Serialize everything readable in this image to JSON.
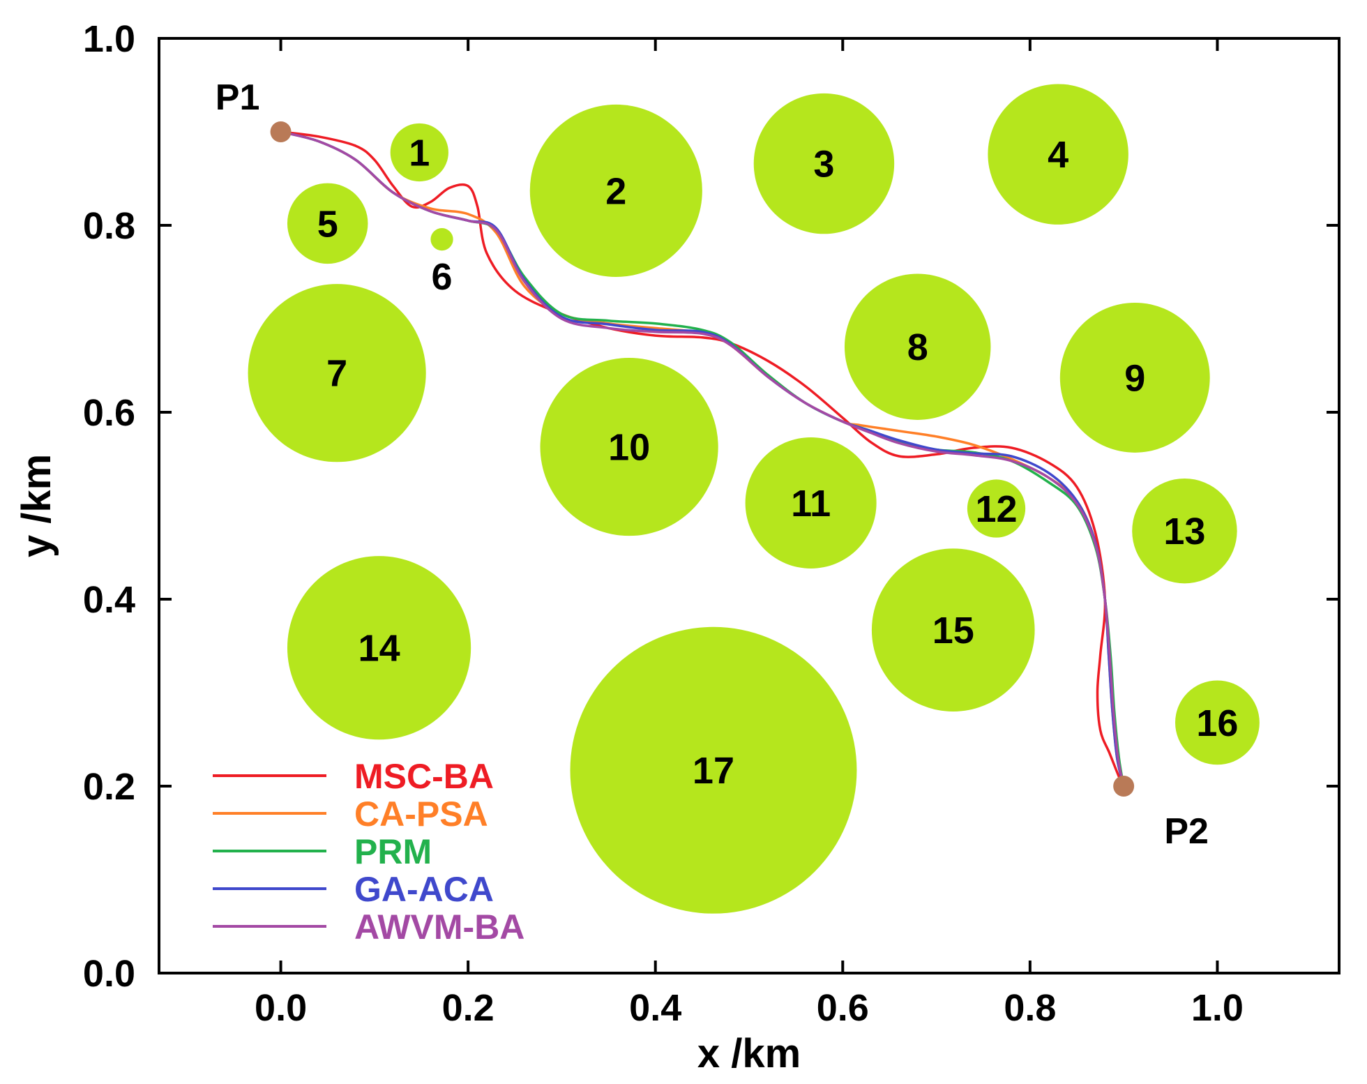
{
  "chart_data": {
    "type": "line",
    "title": "",
    "xlabel": "x /km",
    "ylabel": "y /km",
    "xlim": [
      -0.13,
      1.13
    ],
    "ylim": [
      0.0,
      1.0
    ],
    "xticks": [
      0.0,
      0.2,
      0.4,
      0.6,
      0.8,
      1.0
    ],
    "xtick_labels": [
      "0.0",
      "0.2",
      "0.4",
      "0.6",
      "0.8",
      "1.0"
    ],
    "yticks": [
      0.0,
      0.2,
      0.4,
      0.6,
      0.8,
      1.0
    ],
    "ytick_labels": [
      "0.0",
      "0.2",
      "0.4",
      "0.6",
      "0.8",
      "1.0"
    ],
    "obstacle_color": "#b5e61d",
    "obstacles": [
      {
        "label": "1",
        "cx": 0.148,
        "cy": 0.878,
        "r": 0.031
      },
      {
        "label": "2",
        "cx": 0.358,
        "cy": 0.837,
        "r": 0.092
      },
      {
        "label": "3",
        "cx": 0.58,
        "cy": 0.866,
        "r": 0.075
      },
      {
        "label": "4",
        "cx": 0.83,
        "cy": 0.876,
        "r": 0.075
      },
      {
        "label": "5",
        "cx": 0.05,
        "cy": 0.802,
        "r": 0.043
      },
      {
        "label": "6",
        "cx": 0.172,
        "cy": 0.785,
        "r": 0.012
      },
      {
        "label": "7",
        "cx": 0.06,
        "cy": 0.642,
        "r": 0.095
      },
      {
        "label": "8",
        "cx": 0.68,
        "cy": 0.67,
        "r": 0.078
      },
      {
        "label": "9",
        "cx": 0.912,
        "cy": 0.637,
        "r": 0.08
      },
      {
        "label": "10",
        "cx": 0.372,
        "cy": 0.563,
        "r": 0.095
      },
      {
        "label": "11",
        "cx": 0.566,
        "cy": 0.503,
        "r": 0.07
      },
      {
        "label": "12",
        "cx": 0.764,
        "cy": 0.497,
        "r": 0.031
      },
      {
        "label": "13",
        "cx": 0.965,
        "cy": 0.473,
        "r": 0.056
      },
      {
        "label": "14",
        "cx": 0.105,
        "cy": 0.348,
        "r": 0.098
      },
      {
        "label": "15",
        "cx": 0.718,
        "cy": 0.367,
        "r": 0.087
      },
      {
        "label": "16",
        "cx": 1.0,
        "cy": 0.268,
        "r": 0.045
      },
      {
        "label": "17",
        "cx": 0.462,
        "cy": 0.217,
        "r": 0.153
      }
    ],
    "points": [
      {
        "label": "P1",
        "x": 0.0,
        "y": 0.9
      },
      {
        "label": "P2",
        "x": 0.9,
        "y": 0.2
      }
    ],
    "point_color": "#b97a57",
    "legend_position": "bottom-left",
    "series": [
      {
        "name": "MSC-BA",
        "color": "#ee1c24",
        "x": [
          0.0,
          0.04,
          0.08,
          0.1,
          0.12,
          0.14,
          0.16,
          0.18,
          0.2,
          0.21,
          0.22,
          0.25,
          0.3,
          0.35,
          0.4,
          0.45,
          0.48,
          0.52,
          0.56,
          0.6,
          0.63,
          0.66,
          0.7,
          0.74,
          0.78,
          0.82,
          0.85,
          0.87,
          0.88,
          0.875,
          0.872,
          0.875,
          0.885,
          0.895,
          0.9
        ],
        "y": [
          0.9,
          0.895,
          0.885,
          0.87,
          0.842,
          0.82,
          0.825,
          0.84,
          0.842,
          0.82,
          0.77,
          0.73,
          0.705,
          0.69,
          0.682,
          0.68,
          0.674,
          0.655,
          0.628,
          0.594,
          0.568,
          0.553,
          0.555,
          0.562,
          0.562,
          0.546,
          0.52,
          0.47,
          0.4,
          0.34,
          0.3,
          0.26,
          0.235,
          0.21,
          0.2
        ]
      },
      {
        "name": "CA-PSA",
        "color": "#ff7f27",
        "x": [
          0.0,
          0.04,
          0.08,
          0.12,
          0.16,
          0.2,
          0.23,
          0.26,
          0.3,
          0.35,
          0.4,
          0.45,
          0.48,
          0.52,
          0.56,
          0.6,
          0.62,
          0.66,
          0.7,
          0.74,
          0.78,
          0.82,
          0.85,
          0.87,
          0.88,
          0.884,
          0.888,
          0.893,
          0.9
        ],
        "y": [
          0.9,
          0.89,
          0.87,
          0.835,
          0.818,
          0.812,
          0.792,
          0.735,
          0.705,
          0.695,
          0.69,
          0.685,
          0.672,
          0.638,
          0.61,
          0.59,
          0.586,
          0.58,
          0.574,
          0.565,
          0.55,
          0.53,
          0.505,
          0.46,
          0.4,
          0.34,
          0.28,
          0.23,
          0.2
        ]
      },
      {
        "name": "PRM",
        "color": "#22b14c",
        "x": [
          0.0,
          0.04,
          0.08,
          0.12,
          0.16,
          0.2,
          0.23,
          0.26,
          0.3,
          0.35,
          0.4,
          0.45,
          0.48,
          0.52,
          0.56,
          0.6,
          0.63,
          0.66,
          0.7,
          0.74,
          0.78,
          0.82,
          0.85,
          0.87,
          0.88,
          0.886,
          0.89,
          0.895,
          0.9
        ],
        "y": [
          0.9,
          0.89,
          0.87,
          0.835,
          0.815,
          0.805,
          0.795,
          0.745,
          0.705,
          0.698,
          0.695,
          0.688,
          0.675,
          0.64,
          0.61,
          0.59,
          0.58,
          0.568,
          0.56,
          0.557,
          0.548,
          0.525,
          0.5,
          0.455,
          0.4,
          0.34,
          0.28,
          0.23,
          0.2
        ]
      },
      {
        "name": "GA-ACA",
        "color": "#3f48cc",
        "x": [
          0.0,
          0.04,
          0.08,
          0.12,
          0.16,
          0.2,
          0.23,
          0.26,
          0.3,
          0.35,
          0.4,
          0.45,
          0.48,
          0.52,
          0.56,
          0.6,
          0.63,
          0.66,
          0.7,
          0.74,
          0.78,
          0.82,
          0.85,
          0.87,
          0.88,
          0.884,
          0.888,
          0.893,
          0.9
        ],
        "y": [
          0.9,
          0.89,
          0.87,
          0.835,
          0.815,
          0.805,
          0.797,
          0.742,
          0.702,
          0.694,
          0.688,
          0.686,
          0.673,
          0.638,
          0.61,
          0.59,
          0.58,
          0.57,
          0.56,
          0.556,
          0.553,
          0.535,
          0.505,
          0.46,
          0.4,
          0.34,
          0.28,
          0.23,
          0.2
        ]
      },
      {
        "name": "AWVM-BA",
        "color": "#a349a4",
        "x": [
          0.0,
          0.04,
          0.08,
          0.12,
          0.16,
          0.2,
          0.23,
          0.26,
          0.3,
          0.35,
          0.4,
          0.45,
          0.48,
          0.52,
          0.56,
          0.6,
          0.63,
          0.66,
          0.7,
          0.74,
          0.78,
          0.82,
          0.85,
          0.87,
          0.88,
          0.885,
          0.889,
          0.894,
          0.9
        ],
        "y": [
          0.9,
          0.89,
          0.87,
          0.835,
          0.815,
          0.805,
          0.795,
          0.74,
          0.7,
          0.69,
          0.686,
          0.684,
          0.672,
          0.638,
          0.61,
          0.59,
          0.578,
          0.567,
          0.558,
          0.554,
          0.548,
          0.53,
          0.502,
          0.458,
          0.4,
          0.34,
          0.28,
          0.23,
          0.2
        ]
      }
    ]
  }
}
